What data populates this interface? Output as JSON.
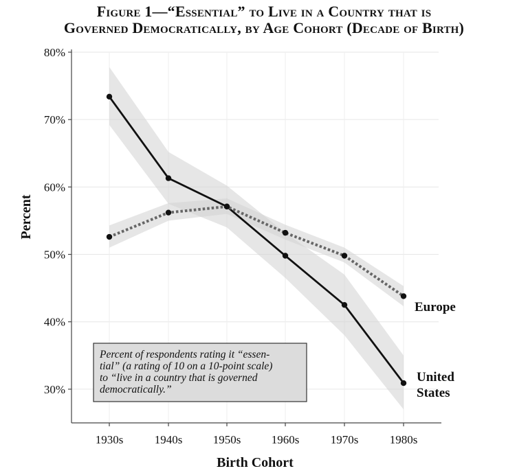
{
  "title": {
    "line1": "Figure 1—“Essential” to Live in a Country that is",
    "line2": "Governed Democratically, by Age Cohort (Decade of Birth)"
  },
  "chart_data": {
    "type": "line",
    "categories": [
      "1930s",
      "1940s",
      "1950s",
      "1960s",
      "1970s",
      "1980s"
    ],
    "xlabel": "Birth Cohort",
    "ylabel": "Percent",
    "ylim": [
      25,
      80
    ],
    "yticks": [
      30,
      40,
      50,
      60,
      70,
      80
    ],
    "ytick_labels": [
      "30%",
      "40%",
      "50%",
      "60%",
      "70%",
      "80%"
    ],
    "grid": true,
    "series": [
      {
        "name": "United States",
        "label_lines": [
          "United",
          "States"
        ],
        "style": "solid",
        "color": "#111111",
        "values": [
          73.4,
          61.3,
          57.1,
          49.8,
          42.5,
          30.9
        ],
        "ci_low": [
          69.2,
          57.5,
          54.0,
          46.5,
          38.0,
          27.0
        ],
        "ci_high": [
          77.8,
          65.2,
          60.2,
          53.2,
          47.0,
          35.0
        ]
      },
      {
        "name": "Europe",
        "label_lines": [
          "Europe"
        ],
        "style": "dotted",
        "color": "#666666",
        "values": [
          52.6,
          56.2,
          57.1,
          53.2,
          49.8,
          43.8
        ],
        "ci_low": [
          51.0,
          55.0,
          56.0,
          52.2,
          48.8,
          42.3
        ],
        "ci_high": [
          54.3,
          57.6,
          58.3,
          54.4,
          51.0,
          45.3
        ]
      }
    ],
    "annotation": {
      "lines": [
        "Percent of respondents rating it “essen-",
        "tial” (a rating of 10 on a 10-point scale)",
        "to “live in a country that is governed",
        "democratically.”"
      ]
    },
    "band_color": "#dddddd"
  }
}
